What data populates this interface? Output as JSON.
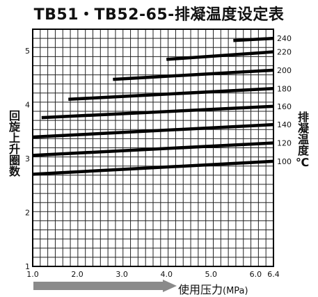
{
  "chart_data": {
    "type": "line",
    "title": "TB51・TB52-65-排凝温度设定表",
    "ylabel": "回旋上升圈数",
    "series_label": "排凝温度℃",
    "xlabel": "使用压力",
    "xlabel_unit": "(MPa)",
    "xlim": [
      1.0,
      6.4
    ],
    "ylim": [
      1,
      5.4
    ],
    "x_ticks": [
      1.0,
      2.0,
      3.0,
      4.0,
      5.0,
      6.0,
      6.4
    ],
    "x_tick_labels": [
      "1.0",
      "2.0",
      "3.0",
      "4.0",
      "5.0",
      "6.0",
      "6.4"
    ],
    "y_ticks": [
      1,
      2,
      3,
      4,
      5
    ],
    "y_tick_labels": [
      "1",
      "2",
      "3",
      "4",
      "5"
    ],
    "grid": true,
    "series": [
      {
        "name": "100",
        "x": [
          1.0,
          6.4
        ],
        "y": [
          2.71,
          2.95
        ]
      },
      {
        "name": "120",
        "x": [
          1.0,
          6.4
        ],
        "y": [
          3.06,
          3.29
        ]
      },
      {
        "name": "140",
        "x": [
          1.0,
          6.4
        ],
        "y": [
          3.4,
          3.63
        ]
      },
      {
        "name": "160",
        "x": [
          1.2,
          6.4
        ],
        "y": [
          3.76,
          3.97
        ]
      },
      {
        "name": "180",
        "x": [
          1.8,
          6.4
        ],
        "y": [
          4.1,
          4.3
        ]
      },
      {
        "name": "200",
        "x": [
          2.8,
          6.4
        ],
        "y": [
          4.47,
          4.64
        ]
      },
      {
        "name": "220",
        "x": [
          4.0,
          6.4
        ],
        "y": [
          4.84,
          4.98
        ]
      },
      {
        "name": "240",
        "x": [
          5.5,
          6.4
        ],
        "y": [
          5.19,
          5.23
        ]
      }
    ]
  }
}
